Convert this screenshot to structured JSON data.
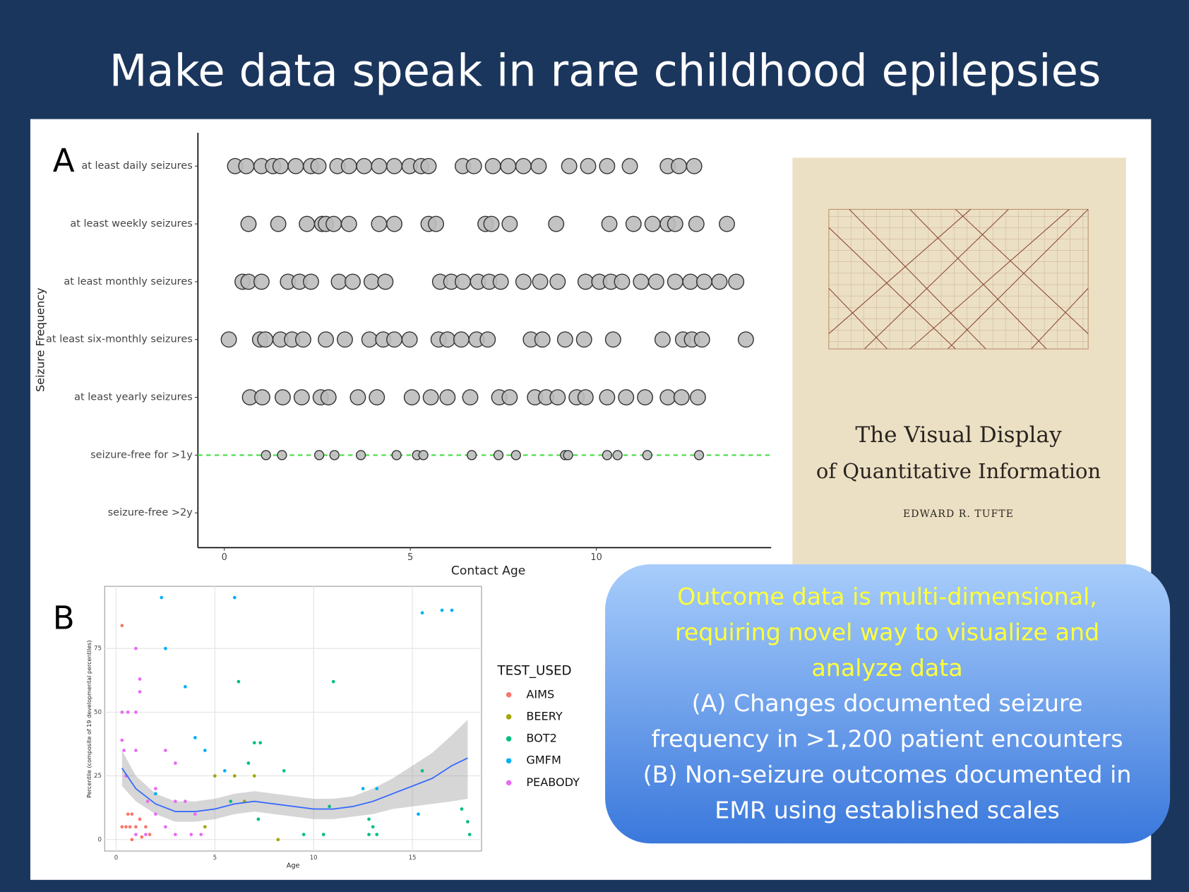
{
  "title": "Make data speak in rare childhood epilepsies",
  "panels": [
    "A",
    "B"
  ],
  "chart_data": [
    {
      "type": "dot",
      "ylabel": "Seizure Frequency",
      "xlabel": "Contact Age",
      "categories": [
        "at least daily seizures",
        "at least weekly seizures",
        "at least monthly seizures",
        "at least six-monthly seizures",
        "at least yearly seizures",
        "seizure-free for >1y",
        "seizure-free >2y"
      ],
      "values": [
        [
          0.29,
          0.59,
          1,
          1.31,
          1.51,
          1.92,
          2.33,
          2.53,
          3.04,
          3.35,
          3.76,
          4.16,
          4.57,
          4.98,
          5.29,
          5.49,
          6.41,
          6.71,
          7.22,
          7.63,
          8.04,
          8.45,
          9.27,
          9.78,
          10.29,
          10.9,
          11.92,
          12.22,
          12.63
        ],
        [
          0.65,
          1.45,
          2.22,
          2.63,
          2.73,
          2.94,
          3.35,
          4.16,
          4.57,
          5.49,
          5.69,
          7.02,
          7.18,
          7.67,
          8.92,
          10.35,
          11,
          11.51,
          11.92,
          12.12,
          12.69,
          13.51
        ],
        [
          0.49,
          0.65,
          1,
          1.71,
          2.02,
          2.33,
          3.08,
          3.45,
          3.96,
          4.33,
          5.8,
          6.1,
          6.41,
          6.82,
          7.12,
          7.43,
          8.04,
          8.49,
          8.96,
          9.71,
          10.08,
          10.39,
          10.69,
          11.2,
          11.61,
          12.12,
          12.53,
          12.9,
          13.31,
          13.76
        ],
        [
          0.12,
          0.96,
          1.1,
          1.51,
          1.82,
          2.12,
          2.73,
          3.24,
          3.9,
          4.27,
          4.57,
          4.98,
          5.76,
          6,
          6.37,
          6.78,
          7.08,
          8.24,
          8.55,
          9.16,
          9.67,
          10.45,
          11.78,
          12.33,
          12.57,
          12.84,
          14.02
        ],
        [
          0.69,
          1.02,
          1.57,
          2.08,
          2.59,
          2.8,
          3.59,
          4.1,
          5.04,
          5.55,
          6,
          6.61,
          7.39,
          7.67,
          8.35,
          8.65,
          8.96,
          9.47,
          9.71,
          10.29,
          10.8,
          11.31,
          11.92,
          12.29,
          12.73
        ],
        [
          1.12,
          1.55,
          2.55,
          2.96,
          3.67,
          4.63,
          5.18,
          5.35,
          6.65,
          7.37,
          7.84,
          9.16,
          9.24,
          10.29,
          10.57,
          11.37,
          12.76
        ],
        []
      ],
      "color": "#bdbdbd",
      "xlim": [
        -0.71,
        14.7
      ],
      "xticks": [
        0,
        5,
        10
      ]
    },
    {
      "type": "scatter",
      "ylabel": "Percentile (composite of 19 developmental percentiles)",
      "xlabel": "Age",
      "legend_title": "TEST_USED",
      "series": [
        {
          "name": "AIMS",
          "color": "#F8766D",
          "x": [
            0.3,
            0.3,
            0.5,
            0.7,
            0.8,
            1,
            1.2,
            1.5,
            1.3,
            0.8,
            1.7,
            0.6
          ],
          "y": [
            84,
            5,
            5,
            5,
            10,
            5,
            8,
            5,
            1,
            0,
            2,
            10
          ]
        },
        {
          "name": "BEERY",
          "color": "#A3A500",
          "x": [
            5,
            6,
            7,
            8.2,
            6.5,
            4.5
          ],
          "y": [
            25,
            25,
            25,
            0,
            15,
            5
          ]
        },
        {
          "name": "BOT2",
          "color": "#00BF7D",
          "x": [
            6.2,
            6.7,
            7,
            7.3,
            11,
            8.5,
            10.8,
            13,
            13.2,
            12.8,
            15.5,
            17.5,
            17.8,
            17.9,
            9.5,
            10.5,
            12.8,
            7.2,
            5.8
          ],
          "y": [
            62,
            30,
            38,
            38,
            62,
            27,
            13,
            5,
            2,
            8,
            27,
            12,
            7,
            2,
            2,
            2,
            2,
            8,
            15
          ]
        },
        {
          "name": "GMFM",
          "color": "#00B0F6",
          "x": [
            2.3,
            6,
            2.5,
            3.5,
            4,
            4.5,
            15.5,
            16.5,
            17,
            12.5,
            13.2,
            15.3,
            5.5,
            2
          ],
          "y": [
            95,
            95,
            75,
            60,
            40,
            35,
            89,
            90,
            90,
            20,
            20,
            10,
            27,
            18
          ]
        },
        {
          "name": "PEABODY",
          "color": "#E76BF3",
          "x": [
            0.3,
            0.6,
            1,
            1,
            1.2,
            1.2,
            0.3,
            0.4,
            1,
            2.5,
            3,
            0.5,
            2,
            3,
            3.5,
            4,
            2,
            1,
            1.5,
            3,
            3.8,
            4.3,
            2.5,
            1.6
          ],
          "y": [
            50,
            50,
            50,
            75,
            63,
            58,
            39,
            35,
            35,
            35,
            30,
            25,
            20,
            15,
            15,
            10,
            10,
            2,
            2,
            2,
            2,
            2,
            5,
            15
          ]
        }
      ],
      "trend": {
        "color": "#3366ff",
        "x": [
          0.3,
          1,
          2,
          3,
          4,
          5,
          6,
          7,
          8,
          9,
          10,
          11,
          12,
          13,
          14,
          15,
          16,
          17,
          17.8
        ],
        "y": [
          28,
          20,
          14,
          11,
          11,
          12,
          14,
          15,
          14,
          13,
          12,
          12,
          13,
          15,
          18,
          21,
          24,
          29,
          32
        ],
        "lower": [
          21,
          15,
          10,
          7,
          7,
          8,
          10,
          11,
          10,
          9,
          8,
          8,
          9,
          10,
          12,
          13,
          14,
          15,
          16
        ],
        "upper": [
          35,
          25,
          18,
          15,
          15,
          16,
          18,
          19,
          18,
          17,
          16,
          16,
          17,
          20,
          24,
          29,
          34,
          41,
          47
        ]
      },
      "xlim": [
        -0.58,
        18.5
      ],
      "ylim": [
        -4.5,
        99.4
      ],
      "xticks": [
        0,
        5,
        10,
        15
      ],
      "yticks": [
        0,
        25,
        50,
        75
      ],
      "grid": true
    }
  ],
  "book": {
    "title": [
      "The Visual Display",
      "of Quantitative Information"
    ],
    "author": "EDWARD R. TUFTE"
  },
  "callout": {
    "highlight": [
      "Outcome data is multi-dimensional,",
      "requiring novel way to visualize and",
      "analyze data"
    ],
    "body": [
      "(A) Changes documented seizure",
      "frequency in >1,200 patient encounters",
      "(B) Non-seizure outcomes documented in",
      "EMR using established scales"
    ]
  }
}
